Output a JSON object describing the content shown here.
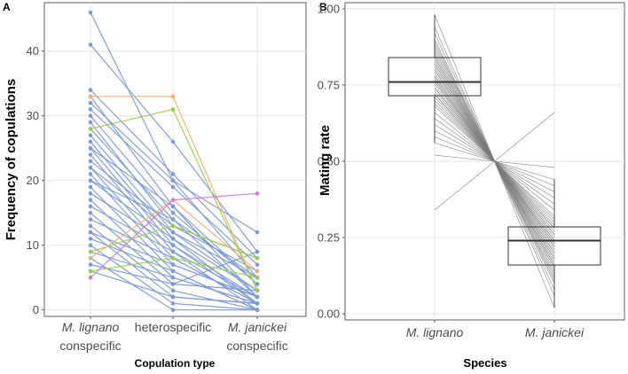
{
  "figure": {
    "panel_a_tag": "A",
    "panel_b_tag": "B"
  },
  "chart_data": [
    {
      "type": "line",
      "panel": "A",
      "title": "",
      "xlabel": "Copulation type",
      "ylabel": "Frequency of copulations",
      "categories": [
        {
          "line1": "M. lignano",
          "line2": "conspecific",
          "italic": true
        },
        {
          "line1": "heterospecific",
          "line2": "",
          "italic": false
        },
        {
          "line1": "M. janickei",
          "line2": "conspecific",
          "italic": true
        }
      ],
      "ylim": [
        -1,
        47.5
      ],
      "yticks": [
        0,
        10,
        20,
        30,
        40
      ],
      "grid": true,
      "colors": {
        "default": "#7f9bd1",
        "orange": "#e8b27c",
        "green": "#9ccc4e",
        "pink": "#d67bd0"
      },
      "series": [
        {
          "color": "default",
          "values": [
            46,
            20,
            12
          ]
        },
        {
          "color": "default",
          "values": [
            41,
            26,
            9
          ]
        },
        {
          "color": "default",
          "values": [
            34,
            21,
            8
          ]
        },
        {
          "color": "default",
          "values": [
            33,
            16,
            2
          ]
        },
        {
          "color": "orange",
          "values": [
            33,
            33,
            3
          ]
        },
        {
          "color": "default",
          "values": [
            32,
            20,
            5
          ]
        },
        {
          "color": "default",
          "values": [
            31,
            19,
            7
          ]
        },
        {
          "color": "default",
          "values": [
            30,
            15,
            4
          ]
        },
        {
          "color": "default",
          "values": [
            29,
            13,
            6
          ]
        },
        {
          "color": "green",
          "values": [
            28,
            31,
            3
          ]
        },
        {
          "color": "default",
          "values": [
            28,
            14,
            2
          ]
        },
        {
          "color": "default",
          "values": [
            27,
            12,
            5
          ]
        },
        {
          "color": "default",
          "values": [
            26,
            11,
            3
          ]
        },
        {
          "color": "default",
          "values": [
            25,
            10,
            1
          ]
        },
        {
          "color": "default",
          "values": [
            25,
            16,
            4
          ]
        },
        {
          "color": "default",
          "values": [
            24,
            9,
            2
          ]
        },
        {
          "color": "default",
          "values": [
            23,
            13,
            8
          ]
        },
        {
          "color": "default",
          "values": [
            22,
            8,
            1
          ]
        },
        {
          "color": "default",
          "values": [
            22,
            12,
            3
          ]
        },
        {
          "color": "default",
          "values": [
            21,
            7,
            2
          ]
        },
        {
          "color": "default",
          "values": [
            20,
            11,
            1
          ]
        },
        {
          "color": "default",
          "values": [
            20,
            14,
            5
          ]
        },
        {
          "color": "default",
          "values": [
            19,
            6,
            0
          ]
        },
        {
          "color": "default",
          "values": [
            18,
            10,
            2
          ]
        },
        {
          "color": "default",
          "values": [
            17,
            5,
            1
          ]
        },
        {
          "color": "default",
          "values": [
            16,
            9,
            0
          ]
        },
        {
          "color": "default",
          "values": [
            15,
            4,
            3
          ]
        },
        {
          "color": "default",
          "values": [
            14,
            8,
            1
          ]
        },
        {
          "color": "default",
          "values": [
            13,
            3,
            0
          ]
        },
        {
          "color": "default",
          "values": [
            12,
            7,
            2
          ]
        },
        {
          "color": "default",
          "values": [
            12,
            2,
            1
          ]
        },
        {
          "color": "default",
          "values": [
            11,
            6,
            0
          ]
        },
        {
          "color": "default",
          "values": [
            10,
            1,
            0
          ]
        },
        {
          "color": "default",
          "values": [
            9,
            5,
            1
          ]
        },
        {
          "color": "default",
          "values": [
            8,
            0,
            0
          ]
        },
        {
          "color": "default",
          "values": [
            7,
            4,
            9
          ]
        },
        {
          "color": "default",
          "values": [
            6,
            2,
            1
          ]
        },
        {
          "color": "green",
          "values": [
            9,
            13,
            8
          ]
        },
        {
          "color": "green",
          "values": [
            6,
            8,
            5
          ]
        },
        {
          "color": "orange",
          "values": [
            8,
            17,
            6
          ]
        },
        {
          "color": "pink",
          "values": [
            5,
            17,
            18
          ]
        }
      ]
    },
    {
      "type": "box",
      "panel": "B",
      "title": "",
      "xlabel": "Species",
      "ylabel": "Mating rate",
      "categories": [
        "M. lignano",
        "M. janickei"
      ],
      "ylim": [
        -0.02,
        1.02
      ],
      "yticks": [
        0.0,
        0.25,
        0.5,
        0.75,
        1.0
      ],
      "ytick_labels": [
        "0.00",
        "0.25",
        "0.50",
        "0.75",
        "1.00"
      ],
      "grid": true,
      "box_color": "#333333",
      "line_color": "#7a7a7a",
      "boxes": [
        {
          "category": "M. lignano",
          "q1": 0.715,
          "median": 0.76,
          "q3": 0.84,
          "min": 0.56,
          "max": 0.98
        },
        {
          "category": "M. janickei",
          "q1": 0.16,
          "median": 0.24,
          "q3": 0.285,
          "min": 0.02,
          "max": 0.44
        }
      ],
      "paired_values": [
        0.98,
        0.94,
        0.92,
        0.9,
        0.89,
        0.88,
        0.87,
        0.86,
        0.85,
        0.84,
        0.84,
        0.83,
        0.82,
        0.82,
        0.81,
        0.8,
        0.8,
        0.79,
        0.78,
        0.78,
        0.77,
        0.77,
        0.76,
        0.76,
        0.75,
        0.74,
        0.74,
        0.73,
        0.72,
        0.72,
        0.71,
        0.7,
        0.69,
        0.68,
        0.66,
        0.64,
        0.62,
        0.6,
        0.58,
        0.56,
        0.52,
        0.34
      ]
    }
  ]
}
